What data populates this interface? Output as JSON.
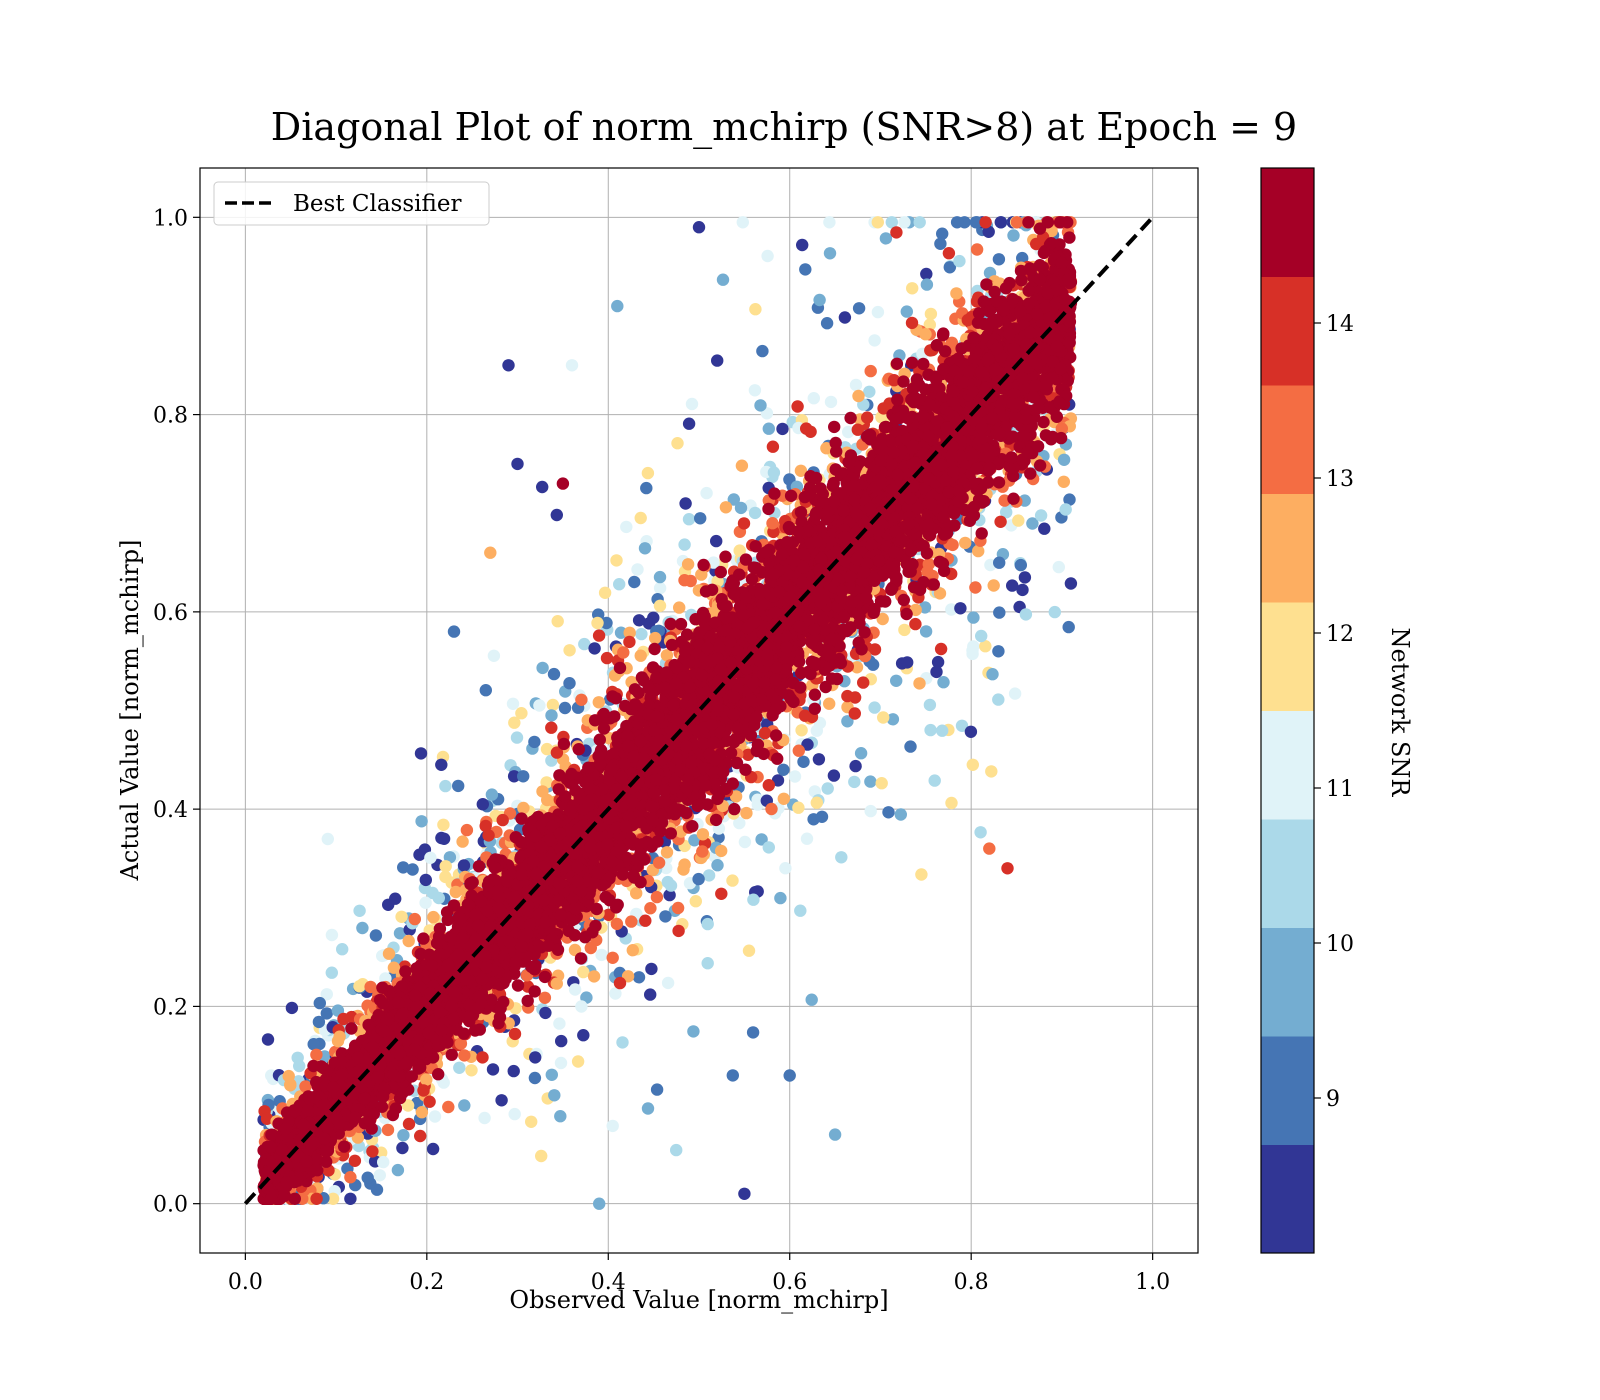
{
  "chart_data": {
    "type": "scatter",
    "title": "Diagonal Plot of norm_mchirp (SNR>8) at Epoch = 9",
    "xlabel": "Observed Value [norm_mchirp]",
    "ylabel": "Actual Value [norm_mchirp]",
    "xlim": [
      -0.05,
      1.05
    ],
    "ylim": [
      -0.05,
      1.05
    ],
    "x_ticks": [
      "0.0",
      "0.2",
      "0.4",
      "0.6",
      "0.8",
      "1.0"
    ],
    "y_ticks": [
      "0.0",
      "0.2",
      "0.4",
      "0.6",
      "0.8",
      "1.0"
    ],
    "grid": true,
    "legend": {
      "placement": "upper-left",
      "entries": [
        "Best Classifier"
      ]
    },
    "reference_line": {
      "name": "Best Classifier",
      "x": [
        0.0,
        1.0
      ],
      "y": [
        0.0,
        1.0
      ],
      "style": "dashed",
      "color": "#000000"
    },
    "colorbar": {
      "label": "Network SNR",
      "range": [
        8,
        15
      ],
      "bins": [
        {
          "from": 8.0,
          "to": 8.7,
          "color": "#313695"
        },
        {
          "from": 8.7,
          "to": 9.4,
          "color": "#4575b4"
        },
        {
          "from": 9.4,
          "to": 10.1,
          "color": "#74add1"
        },
        {
          "from": 10.1,
          "to": 10.8,
          "color": "#abd9e9"
        },
        {
          "from": 10.8,
          "to": 11.5,
          "color": "#e0f3f8"
        },
        {
          "from": 11.5,
          "to": 12.2,
          "color": "#fee090"
        },
        {
          "from": 12.2,
          "to": 12.9,
          "color": "#fdae61"
        },
        {
          "from": 12.9,
          "to": 13.6,
          "color": "#f46d43"
        },
        {
          "from": 13.6,
          "to": 14.3,
          "color": "#d73027"
        },
        {
          "from": 14.3,
          "to": 15.0,
          "color": "#a50026"
        }
      ],
      "ticks": [
        {
          "value": 9,
          "label": "9"
        },
        {
          "value": 10,
          "label": "10"
        },
        {
          "value": 11,
          "label": "11"
        },
        {
          "value": 12,
          "label": "12"
        },
        {
          "value": 13,
          "label": "13"
        },
        {
          "value": 14,
          "label": "14"
        }
      ]
    },
    "points": {
      "description_x_range": [
        0.02,
        0.91
      ],
      "dense_snr_above": 14.3,
      "outliers": [
        {
          "x": 0.5,
          "y": 0.99,
          "snr": 8.2
        },
        {
          "x": 0.41,
          "y": 0.91,
          "snr": 9.8
        },
        {
          "x": 0.29,
          "y": 0.85,
          "snr": 8.3
        },
        {
          "x": 0.36,
          "y": 0.85,
          "snr": 11.3
        },
        {
          "x": 0.3,
          "y": 0.75,
          "snr": 8.2
        },
        {
          "x": 0.35,
          "y": 0.73,
          "snr": 14.8
        },
        {
          "x": 0.27,
          "y": 0.66,
          "snr": 12.6
        },
        {
          "x": 0.23,
          "y": 0.58,
          "snr": 9.0
        },
        {
          "x": 0.65,
          "y": 0.07,
          "snr": 9.8
        },
        {
          "x": 0.6,
          "y": 0.13,
          "snr": 9.2
        },
        {
          "x": 0.82,
          "y": 0.36,
          "snr": 12.9
        },
        {
          "x": 0.84,
          "y": 0.34,
          "snr": 14.2
        },
        {
          "x": 0.83,
          "y": 0.56,
          "snr": 9.2
        },
        {
          "x": 0.55,
          "y": 0.01,
          "snr": 8.3
        },
        {
          "x": 0.39,
          "y": 0.0,
          "snr": 9.4
        }
      ]
    }
  }
}
